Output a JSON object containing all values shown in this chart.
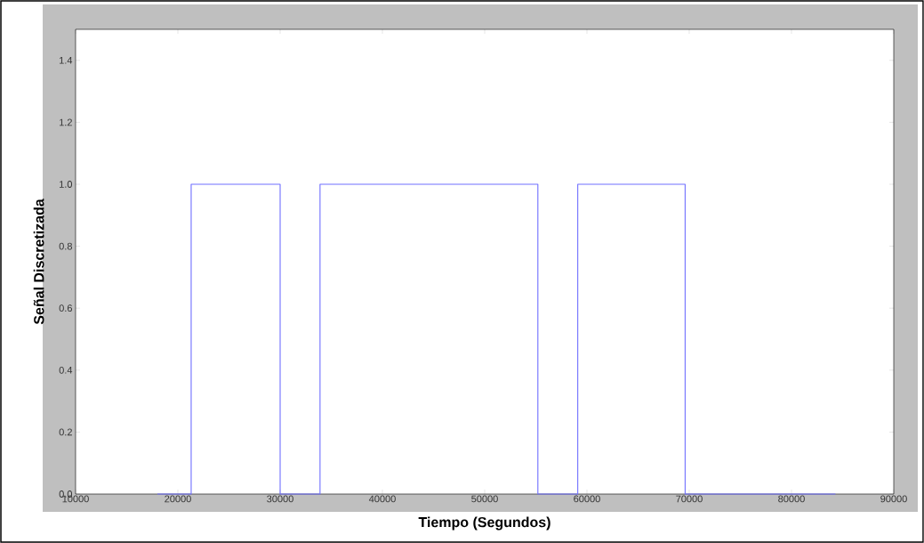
{
  "chart_data": {
    "type": "step",
    "xlabel": "Tiempo (Segundos)",
    "ylabel": "Señal Discretizada",
    "x": [
      18000,
      21300,
      30000,
      33900,
      55200,
      59100,
      69600,
      84300
    ],
    "series": [
      {
        "color": "#7070ff",
        "values": [
          0,
          1,
          0,
          1,
          0,
          1,
          0,
          0
        ]
      }
    ],
    "xlim": [
      10000,
      90000
    ],
    "ylim": [
      0,
      1.5
    ],
    "xticks": [
      10000,
      20000,
      30000,
      40000,
      50000,
      60000,
      70000,
      80000,
      90000
    ],
    "yticks": [
      {
        "value": 0,
        "label": "0.0"
      },
      0.2,
      0.4,
      0.6,
      0.8,
      {
        "value": 1,
        "label": "1.0"
      },
      1.2,
      1.4
    ],
    "grid": false,
    "marker": "none",
    "line_style": "solid"
  }
}
